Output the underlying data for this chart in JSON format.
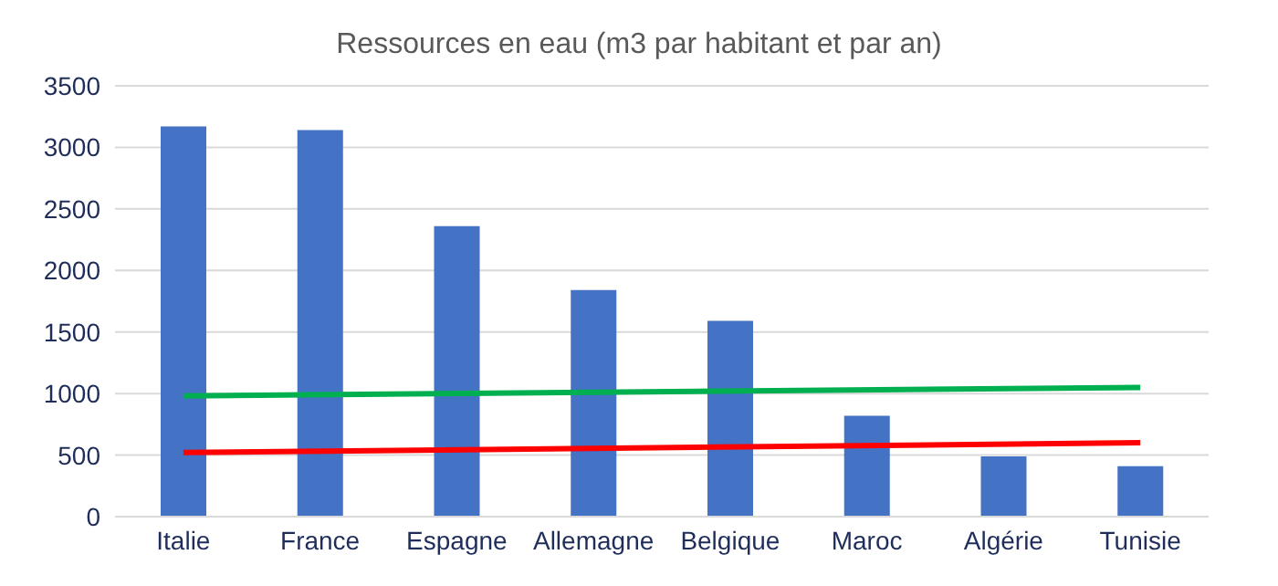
{
  "chart_data": {
    "type": "bar",
    "title": "Ressources en eau (m3 par habitant et par an)",
    "categories": [
      "Italie",
      "France",
      "Espagne",
      "Allemagne",
      "Belgique",
      "Maroc",
      "Algérie",
      "Tunisie"
    ],
    "series": [
      {
        "color": "#4472c4",
        "values": [
          3170,
          3140,
          2360,
          1840,
          1590,
          820,
          490,
          410
        ]
      },
      {
        "type": "line",
        "color": "#00b050",
        "x": [
          "Italie",
          "Tunisie"
        ],
        "values": [
          980,
          1050
        ]
      },
      {
        "type": "line",
        "color": "#ff0000",
        "x": [
          "Italie",
          "Tunisie"
        ],
        "values": [
          520,
          600
        ]
      }
    ],
    "ylim": [
      0,
      3500
    ],
    "yticks": [
      0,
      500,
      1000,
      1500,
      2000,
      2500,
      3000,
      3500
    ],
    "grid": "y",
    "legend": false,
    "marker": "none"
  }
}
